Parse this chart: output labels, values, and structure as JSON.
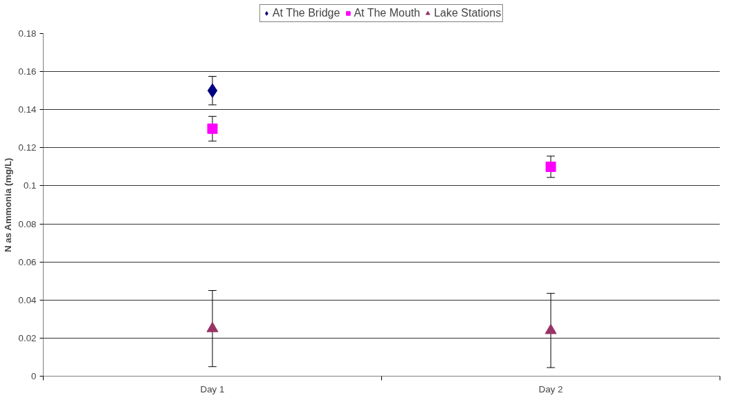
{
  "chart_data": {
    "type": "scatter",
    "ylabel": "N as Ammonia (mg/L)",
    "categories": [
      "Day 1",
      "Day 2"
    ],
    "series": [
      {
        "name": "At The Bridge",
        "color": "#000080",
        "marker": "diamond",
        "values": [
          0.15,
          null
        ],
        "errors": [
          0.0075,
          null
        ]
      },
      {
        "name": "At The Mouth",
        "color": "#ff00ff",
        "marker": "square",
        "values": [
          0.13,
          0.11
        ],
        "errors": [
          0.0065,
          0.0056
        ]
      },
      {
        "name": "Lake Stations",
        "color": "#993366",
        "marker": "triangle",
        "values": [
          0.025,
          0.024
        ],
        "errors": [
          0.02,
          0.0195
        ]
      }
    ],
    "ylim": [
      0,
      0.18
    ],
    "yticks": [
      0,
      0.02,
      0.04,
      0.06,
      0.08,
      0.1,
      0.12,
      0.14,
      0.16,
      0.18
    ],
    "grid": "y",
    "legend": "top"
  }
}
